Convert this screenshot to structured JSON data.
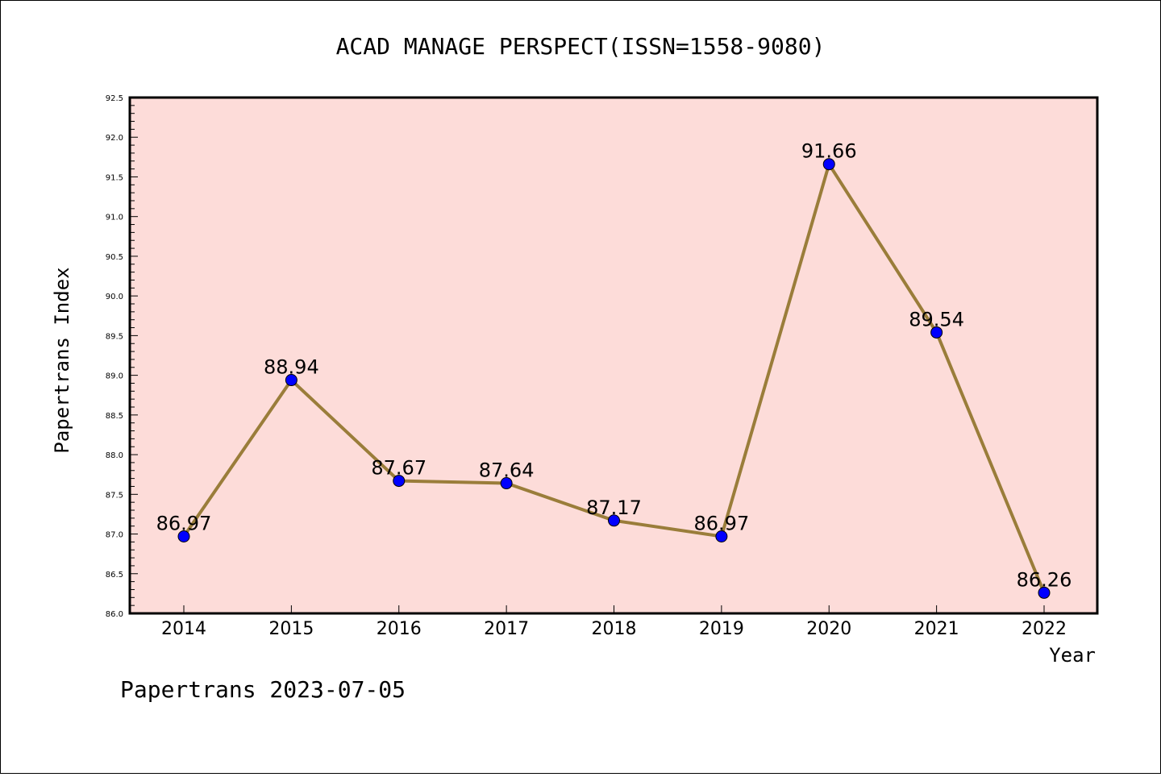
{
  "chart_data": {
    "type": "line",
    "title": "ACAD MANAGE PERSPECT(ISSN=1558-9080)",
    "xlabel": "Year",
    "ylabel": "Papertrans Index",
    "categories": [
      "2014",
      "2015",
      "2016",
      "2017",
      "2018",
      "2019",
      "2020",
      "2021",
      "2022"
    ],
    "series": [
      {
        "values": [
          86.97,
          88.94,
          87.67,
          87.64,
          87.17,
          86.97,
          91.66,
          89.54,
          86.26
        ],
        "labels": [
          "86.97",
          "88.94",
          "87.67",
          "87.64",
          "87.17",
          "86.97",
          "91.66",
          "89.54",
          "86.26"
        ]
      }
    ],
    "ylim": [
      86.0,
      92.5
    ],
    "yticks": [
      "86.0",
      "86.5",
      "87.0",
      "87.5",
      "88.0",
      "88.5",
      "89.0",
      "89.5",
      "90.0",
      "90.5",
      "91.0",
      "91.5",
      "92.0",
      "92.5"
    ],
    "grid": false,
    "plot_background": "#fddcd9",
    "line_color": "#9a7d3a",
    "marker_color": "#0000ff"
  },
  "footer": "Papertrans 2023-07-05"
}
